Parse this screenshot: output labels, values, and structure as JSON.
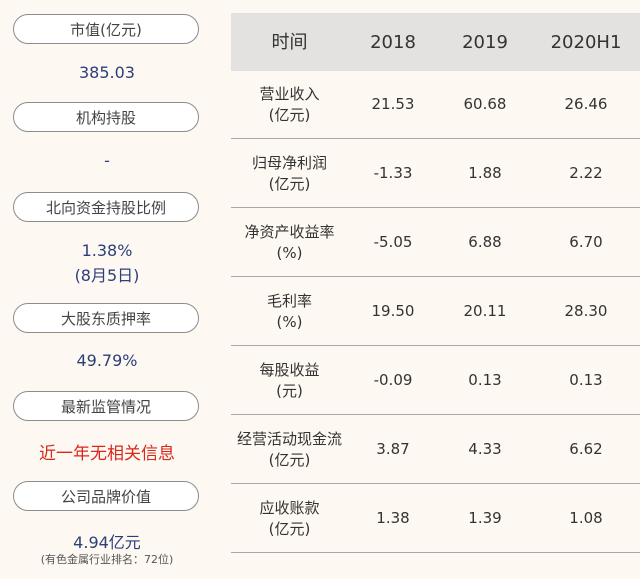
{
  "left_panel": {
    "items": [
      {
        "label": "市值(亿元)",
        "value": "385.03"
      },
      {
        "label": "机构持股",
        "value": "-"
      },
      {
        "label": "北向资金持股比例",
        "value": "1.38%",
        "value2": "(8月5日)"
      },
      {
        "label": "大股东质押率",
        "value": "49.79%"
      },
      {
        "label": "最新监管情况",
        "value": "近一年无相关信息"
      },
      {
        "label": "公司品牌价值",
        "value": "4.94亿元",
        "note": "(有色金属行业排名：72位)"
      }
    ]
  },
  "table": {
    "headers": [
      "时间",
      "2018",
      "2019",
      "2020H1"
    ],
    "rows": [
      {
        "name1": "营业收入",
        "name2": "(亿元)",
        "v": [
          "21.53",
          "60.68",
          "26.46"
        ]
      },
      {
        "name1": "归母净利润",
        "name2": "(亿元)",
        "v": [
          "-1.33",
          "1.88",
          "2.22"
        ]
      },
      {
        "name1": "净资产收益率",
        "name2": "(%)",
        "v": [
          "-5.05",
          "6.88",
          "6.70"
        ]
      },
      {
        "name1": "毛利率",
        "name2": "(%)",
        "v": [
          "19.50",
          "20.11",
          "28.30"
        ]
      },
      {
        "name1": "每股收益",
        "name2": "(元)",
        "v": [
          "-0.09",
          "0.13",
          "0.13"
        ]
      },
      {
        "name1": "经营活动现金流",
        "name2": "(亿元)",
        "v": [
          "3.87",
          "4.33",
          "6.62"
        ]
      },
      {
        "name1": "应收账款",
        "name2": "(亿元)",
        "v": [
          "1.38",
          "1.39",
          "1.08"
        ]
      }
    ]
  }
}
